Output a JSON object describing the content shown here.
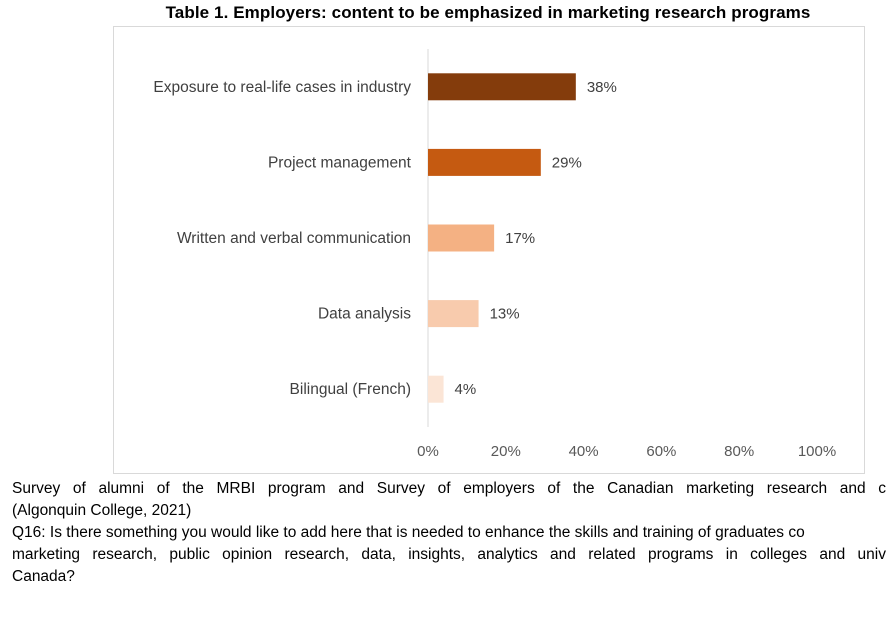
{
  "chart_data": {
    "type": "bar",
    "orientation": "horizontal",
    "title": "Table 1. Employers: content to be emphasized in marketing research programs",
    "categories": [
      "Exposure to real-life cases in industry",
      "Project management",
      "Written and verbal communication",
      "Data analysis",
      "Bilingual (French)"
    ],
    "values": [
      38,
      29,
      17,
      13,
      4
    ],
    "value_labels": [
      "38%",
      "29%",
      "17%",
      "13%",
      "4%"
    ],
    "bar_colors": [
      "#843c0c",
      "#c55a11",
      "#f4b183",
      "#f8cbad",
      "#fbe5d6"
    ],
    "xlim": [
      0,
      100
    ],
    "x_ticks": [
      "0%",
      "20%",
      "40%",
      "60%",
      "80%",
      "100%"
    ],
    "grid": false,
    "xlabel": "",
    "ylabel": ""
  },
  "notes": {
    "line1": "Survey of alumni of the MRBI program and Survey of employers of the Canadian marketing research and c",
    "line2": "(Algonquin College, 2021)",
    "line3": "Q16: Is there something you would like to add here that is needed to enhance the skills and training of graduates co",
    "line4": "marketing research, public opinion research, data, insights, analytics and related programs in colleges and univ",
    "line5": "Canada?"
  }
}
